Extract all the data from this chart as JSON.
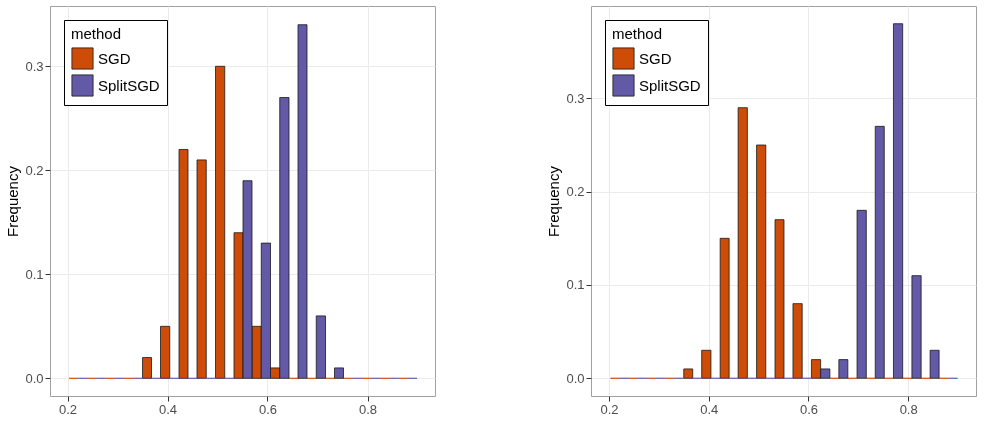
{
  "chart_data": [
    {
      "type": "histogram",
      "ylabel": "Frequency",
      "legend_title": "method",
      "legend": "top left",
      "grid": true,
      "bins": [
        0.203,
        0.24,
        0.276,
        0.313,
        0.35,
        0.386,
        0.423,
        0.459,
        0.496,
        0.533,
        0.569,
        0.606,
        0.643,
        0.679,
        0.716,
        0.752,
        0.789,
        0.826,
        0.862,
        0.899
      ],
      "series": [
        {
          "name": "SGD",
          "color": "#cc4c08",
          "values": [
            0,
            0,
            0,
            0,
            0.02,
            0.05,
            0.22,
            0.21,
            0.3,
            0.14,
            0.05,
            0.01,
            0,
            0,
            0,
            0,
            0,
            0,
            0
          ]
        },
        {
          "name": "SplitSGD",
          "color": "#6259a7",
          "values": [
            0,
            0,
            0,
            0,
            0,
            0,
            0,
            0,
            0,
            0.19,
            0.13,
            0.27,
            0.34,
            0.06,
            0.01,
            0,
            0,
            0,
            0
          ]
        }
      ],
      "xlim": [
        0.165,
        0.935
      ],
      "xticks": [
        0.2,
        0.4,
        0.6,
        0.8
      ],
      "ylim": [
        -0.017,
        0.358
      ],
      "yticks": [
        {
          "value": 0,
          "label": "0.0"
        },
        {
          "value": 0.1,
          "label": "0.1"
        },
        {
          "value": 0.2,
          "label": "0.2"
        },
        {
          "value": 0.3,
          "label": "0.3"
        }
      ]
    },
    {
      "type": "histogram",
      "ylabel": "Frequency",
      "legend_title": "method",
      "legend": "top left",
      "grid": true,
      "bins": [
        0.203,
        0.24,
        0.276,
        0.313,
        0.35,
        0.386,
        0.423,
        0.459,
        0.496,
        0.533,
        0.569,
        0.606,
        0.643,
        0.679,
        0.716,
        0.752,
        0.789,
        0.826,
        0.862,
        0.899
      ],
      "series": [
        {
          "name": "SGD",
          "color": "#cc4c08",
          "values": [
            0,
            0,
            0,
            0,
            0.01,
            0.03,
            0.15,
            0.29,
            0.25,
            0.17,
            0.08,
            0.02,
            0,
            0,
            0,
            0,
            0,
            0,
            0
          ]
        },
        {
          "name": "SplitSGD",
          "color": "#6259a7",
          "values": [
            0,
            0,
            0,
            0,
            0,
            0,
            0,
            0,
            0,
            0,
            0,
            0.01,
            0.02,
            0.18,
            0.27,
            0.38,
            0.11,
            0.03,
            0
          ]
        }
      ],
      "xlim": [
        0.164,
        0.936
      ],
      "xticks": [
        0.2,
        0.4,
        0.6,
        0.8
      ],
      "ylim": [
        -0.019,
        0.399
      ],
      "yticks": [
        {
          "value": 0,
          "label": "0.0"
        },
        {
          "value": 0.1,
          "label": "0.1"
        },
        {
          "value": 0.2,
          "label": "0.2"
        },
        {
          "value": 0.3,
          "label": "0.3"
        }
      ]
    }
  ]
}
